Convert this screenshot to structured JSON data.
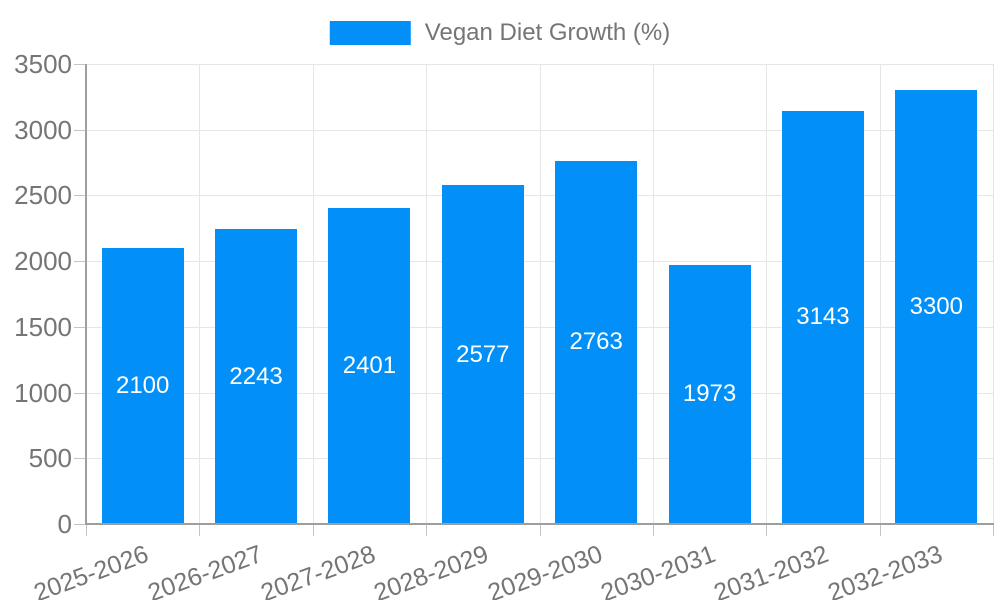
{
  "chart_data": {
    "type": "bar",
    "title": "Vegan Diet Growth (%)",
    "legend": {
      "label": "Vegan Diet Growth (%)",
      "position": "top"
    },
    "categories": [
      "2025-2026",
      "2026-2027",
      "2027-2028",
      "2028-2029",
      "2029-2030",
      "2030-2031",
      "2031-2032",
      "2032-2033"
    ],
    "series": [
      {
        "name": "Vegan Diet Growth (%)",
        "values": [
          2100,
          2243,
          2401,
          2577,
          2763,
          1973,
          3143,
          3300
        ]
      }
    ],
    "xlabel": "",
    "ylabel": "",
    "ylim": [
      0,
      3500
    ],
    "yticks": [
      0,
      500,
      1000,
      1500,
      2000,
      2500,
      3000,
      3500
    ],
    "grid": true,
    "value_labels": "centered-inside-bars",
    "colors": {
      "bar": "#0290f8",
      "grid": "#e6e6e6",
      "axis": "#9e9e9e",
      "tick": "#c4c4c4",
      "tick_label": "#757575",
      "value_label": "#ffffff"
    }
  }
}
